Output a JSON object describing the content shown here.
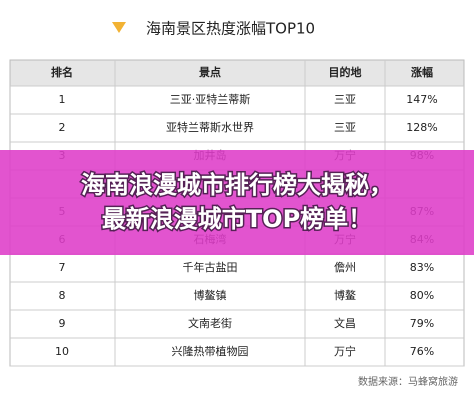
{
  "header": {
    "title": "海南景区热度涨幅TOP10"
  },
  "table": {
    "columns": [
      "排名",
      "景点",
      "目的地",
      "涨幅"
    ],
    "rows": [
      {
        "rank": "1",
        "name": "三亚·亚特兰蒂斯",
        "city": "三亚",
        "growth": "147%"
      },
      {
        "rank": "2",
        "name": "亚特兰蒂斯水世界",
        "city": "三亚",
        "growth": "128%"
      },
      {
        "rank": "3",
        "name": "加井岛",
        "city": "万宁",
        "growth": "98%"
      },
      {
        "rank": "5",
        "growth": "87%"
      },
      {
        "rank": "6",
        "name": "石梅湾",
        "city": "万宁",
        "growth": "84%"
      },
      {
        "rank": "7",
        "name": "千年古盐田",
        "city": "儋州",
        "growth": "83%"
      },
      {
        "rank": "8",
        "name": "博鳌镇",
        "city": "博鳌",
        "growth": "80%"
      },
      {
        "rank": "9",
        "name": "文南老街",
        "city": "文昌",
        "growth": "79%"
      },
      {
        "rank": "10",
        "name": "兴隆热带植物园",
        "city": "万宁",
        "growth": "76%"
      }
    ]
  },
  "source": "数据来源：马蜂窝旅游",
  "banner": {
    "line1": "海南浪漫城市排行榜大揭秘，",
    "line2": "最新浪漫城市TOP榜单！"
  }
}
